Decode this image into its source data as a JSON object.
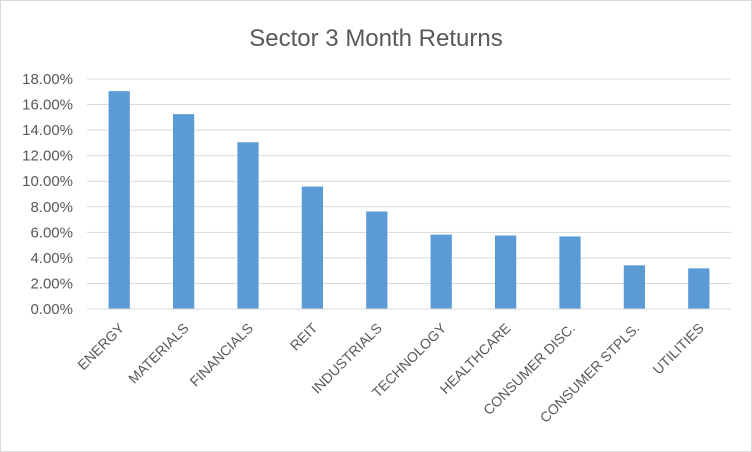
{
  "chart_data": {
    "type": "bar",
    "title": "Sector 3 Month Returns",
    "xlabel": "",
    "ylabel": "",
    "categories": [
      "ENERGY",
      "MATERIALS",
      "FINANCIALS",
      "REIT",
      "INDUSTRIALS",
      "TECHNOLOGY",
      "HEALTHCARE",
      "CONSUMER DISC.",
      "CONSUMER STPLS.",
      "UTILITIES"
    ],
    "values": [
      0.1705,
      0.1525,
      0.1305,
      0.0958,
      0.0763,
      0.0582,
      0.0575,
      0.0568,
      0.0342,
      0.0318
    ],
    "ylim": [
      0,
      0.18
    ],
    "yticks": [
      0,
      0.02,
      0.04,
      0.06,
      0.08,
      0.1,
      0.12,
      0.14,
      0.16,
      0.18
    ],
    "ytick_labels": [
      "0.00%",
      "2.00%",
      "4.00%",
      "6.00%",
      "8.00%",
      "10.00%",
      "12.00%",
      "14.00%",
      "16.00%",
      "18.00%"
    ],
    "grid": true,
    "legend": "none",
    "bar_color": "#5b9bd5"
  }
}
